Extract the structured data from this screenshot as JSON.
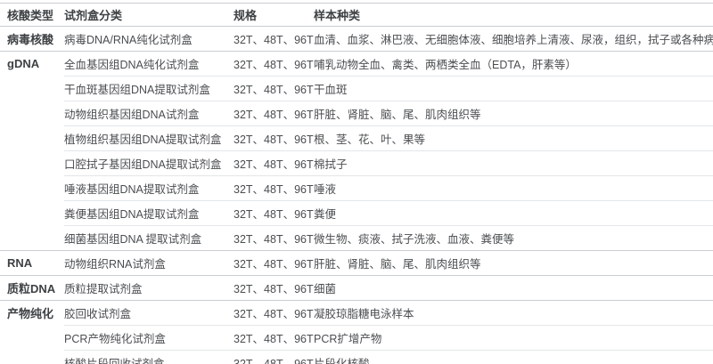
{
  "colors": {
    "text": "#4a4d50",
    "heading": "#3e4144",
    "line_strong": "#c9cdd1",
    "line_light": "#e3e6e9",
    "background": "#ffffff"
  },
  "table": {
    "columns": [
      "核酸类型",
      "试剂盒分类",
      "规格",
      "样本种类"
    ],
    "rows": [
      {
        "category": "病毒核酸",
        "kit": "病毒DNA/RNA纯化试剂盒",
        "spec": "32T、48T、96T",
        "samples": "血清、血浆、淋巴液、无细胞体液、细胞培养上清液、尿液，组织，拭子或各种病毒保存液",
        "group_start": true
      },
      {
        "category": "gDNA",
        "kit": "全血基因组DNA纯化试剂盒",
        "spec": "32T、48T、96T",
        "samples": "哺乳动物全血、禽类、两栖类全血（EDTA，肝素等）",
        "group_start": true
      },
      {
        "category": "",
        "kit": "干血斑基因组DNA提取试剂盒",
        "spec": "32T、48T、96T",
        "samples": "干血斑",
        "group_start": false
      },
      {
        "category": "",
        "kit": "动物组织基因组DNA试剂盒",
        "spec": "32T、48T、96T",
        "samples": "肝脏、肾脏、脑、尾、肌肉组织等",
        "group_start": false
      },
      {
        "category": "",
        "kit": "植物组织基因组DNA提取试剂盒",
        "spec": "32T、48T、96T",
        "samples": "根、茎、花、叶、果等",
        "group_start": false
      },
      {
        "category": "",
        "kit": "口腔拭子基因组DNA提取试剂盒",
        "spec": "32T、48T、96T",
        "samples": "棉拭子",
        "group_start": false
      },
      {
        "category": "",
        "kit": "唾液基因组DNA提取试剂盒",
        "spec": "32T、48T、96T",
        "samples": "唾液",
        "group_start": false
      },
      {
        "category": "",
        "kit": "粪便基因组DNA提取试剂盒",
        "spec": "32T、48T、96T",
        "samples": "粪便",
        "group_start": false
      },
      {
        "category": "",
        "kit": "细菌基因组DNA 提取试剂盒",
        "spec": "32T、48T、96T",
        "samples": "微生物、痰液、拭子洗液、血液、粪便等",
        "group_start": false
      },
      {
        "category": "RNA",
        "kit": "动物组织RNA试剂盒",
        "spec": "32T、48T、96T",
        "samples": "肝脏、肾脏、脑、尾、肌肉组织等",
        "group_start": true
      },
      {
        "category": "质粒DNA",
        "kit": "质粒提取试剂盒",
        "spec": "32T、48T、96T",
        "samples": "细菌",
        "group_start": true
      },
      {
        "category": "产物纯化",
        "kit": "胶回收试剂盒",
        "spec": "32T、48T、96T",
        "samples": "凝胶琼脂糖电泳样本",
        "group_start": true
      },
      {
        "category": "",
        "kit": "PCR产物纯化试剂盒",
        "spec": "32T、48T、96T",
        "samples": "PCR扩增产物",
        "group_start": false
      },
      {
        "category": "",
        "kit": "核酸片段回收试剂盒",
        "spec": "32T、48T、96T",
        "samples": "片段化核酸",
        "group_start": false
      }
    ]
  }
}
